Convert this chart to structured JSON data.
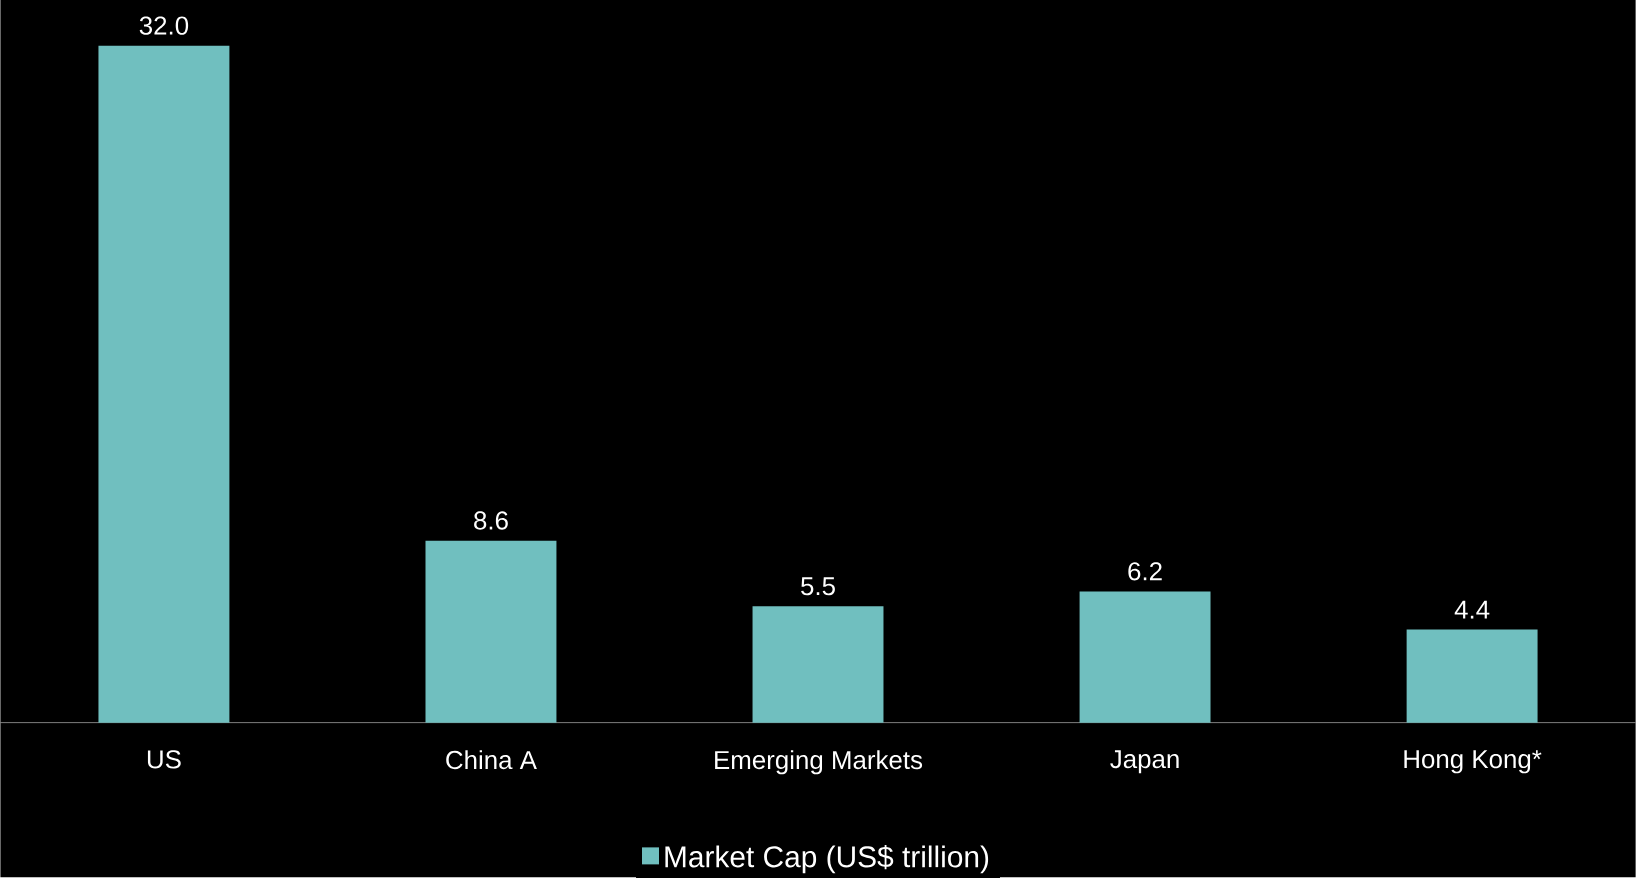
{
  "chart_data": {
    "type": "bar",
    "categories": [
      "US",
      "China A",
      "Emerging Markets",
      "Japan",
      "Hong Kong*"
    ],
    "series": [
      {
        "name": "Market Cap (US$ trillion)",
        "color": "#70bfbf",
        "values": [
          32.0,
          8.6,
          5.5,
          6.2,
          4.4
        ],
        "value_labels": [
          "32.0",
          "8.6",
          "5.5",
          "6.2",
          "4.4"
        ]
      }
    ],
    "legend": "bottom"
  }
}
